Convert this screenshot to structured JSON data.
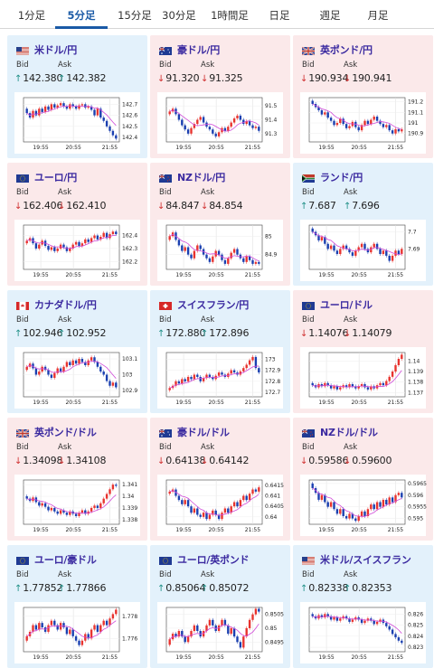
{
  "tabs": [
    {
      "label": "1分足",
      "active": false
    },
    {
      "label": "5分足",
      "active": true
    },
    {
      "label": "15分足",
      "active": false
    },
    {
      "label": "30分足",
      "active": false
    },
    {
      "label": "1時間足",
      "active": false
    },
    {
      "label": "日足",
      "active": false
    },
    {
      "label": "週足",
      "active": false
    },
    {
      "label": "月足",
      "active": false
    }
  ],
  "bid_label": "Bid",
  "ask_label": "Ask",
  "cards": [
    {
      "pair": "米ドル/円",
      "trend": "up",
      "bid": "142.380",
      "ask": "142.382",
      "flag": "us",
      "chart_data": {
        "type": "candlestick",
        "x_ticks": [
          "19:55",
          "20:55",
          "21:55"
        ],
        "y_ticks": [
          "142.7",
          "142.6",
          "142.5",
          "142.4"
        ],
        "ylim": [
          142.36,
          142.76
        ],
        "close": [
          142.62,
          142.58,
          142.64,
          142.6,
          142.66,
          142.63,
          142.68,
          142.65,
          142.7,
          142.67,
          142.69,
          142.71,
          142.68,
          142.66,
          142.7,
          142.68,
          142.66,
          142.69,
          142.7,
          142.67,
          142.68,
          142.65,
          142.6,
          142.66,
          142.58,
          142.55,
          142.5,
          142.46,
          142.42,
          142.39
        ]
      }
    },
    {
      "pair": "豪ドル/円",
      "trend": "down",
      "bid": "91.320",
      "ask": "91.325",
      "flag": "au",
      "chart_data": {
        "type": "candlestick",
        "x_ticks": [
          "19:55",
          "20:55",
          "21:55"
        ],
        "y_ticks": [
          "91.5",
          "91.4",
          "91.3"
        ],
        "ylim": [
          91.24,
          91.56
        ],
        "close": [
          91.46,
          91.48,
          91.44,
          91.4,
          91.36,
          91.33,
          91.3,
          91.34,
          91.37,
          91.4,
          91.42,
          91.38,
          91.35,
          91.33,
          91.3,
          91.28,
          91.31,
          91.34,
          91.32,
          91.35,
          91.38,
          91.41,
          91.43,
          91.4,
          91.37,
          91.39,
          91.36,
          91.34,
          91.35,
          91.32
        ]
      }
    },
    {
      "pair": "英ポンド/円",
      "trend": "down",
      "bid": "190.934",
      "ask": "190.941",
      "flag": "gb",
      "chart_data": {
        "type": "candlestick",
        "x_ticks": [
          "19:55",
          "20:55",
          "21:55"
        ],
        "y_ticks": [
          "191.2",
          "191.1",
          "191",
          "190.9"
        ],
        "ylim": [
          190.82,
          191.24
        ],
        "close": [
          191.18,
          191.15,
          191.12,
          191.08,
          191.1,
          191.05,
          191.02,
          190.98,
          191.0,
          191.04,
          190.99,
          190.95,
          190.97,
          191.01,
          190.96,
          190.93,
          190.98,
          191.02,
          190.99,
          191.03,
          191.06,
          191.02,
          190.99,
          190.96,
          190.98,
          190.93,
          190.9,
          190.94,
          190.92,
          190.94
        ]
      }
    },
    {
      "pair": "ユーロ/円",
      "trend": "down",
      "bid": "162.406",
      "ask": "162.410",
      "flag": "eu",
      "chart_data": {
        "type": "candlestick",
        "x_ticks": [
          "19:55",
          "20:55",
          "21:55"
        ],
        "y_ticks": [
          "162.4",
          "162.3",
          "162.2"
        ],
        "ylim": [
          162.14,
          162.48
        ],
        "close": [
          162.36,
          162.38,
          162.34,
          162.3,
          162.33,
          162.36,
          162.32,
          162.29,
          162.31,
          162.28,
          162.3,
          162.33,
          162.31,
          162.28,
          162.3,
          162.33,
          162.35,
          162.32,
          162.34,
          162.37,
          162.35,
          162.38,
          162.4,
          162.37,
          162.39,
          162.42,
          162.38,
          162.41,
          162.43,
          162.41
        ]
      }
    },
    {
      "pair": "NZドル/円",
      "trend": "down",
      "bid": "84.847",
      "ask": "84.854",
      "flag": "nz",
      "chart_data": {
        "type": "candlestick",
        "x_ticks": [
          "19:55",
          "20:55",
          "21:55"
        ],
        "y_ticks": [
          "85",
          "84.9"
        ],
        "ylim": [
          84.82,
          85.06
        ],
        "close": [
          85.0,
          85.02,
          84.98,
          84.95,
          84.92,
          84.94,
          84.9,
          84.88,
          84.92,
          84.95,
          84.93,
          84.9,
          84.88,
          84.86,
          84.89,
          84.92,
          84.9,
          84.87,
          84.85,
          84.88,
          84.91,
          84.93,
          84.9,
          84.88,
          84.86,
          84.89,
          84.87,
          84.85,
          84.86,
          84.85
        ]
      }
    },
    {
      "pair": "ランド/円",
      "trend": "up",
      "bid": "7.687",
      "ask": "7.696",
      "flag": "za",
      "chart_data": {
        "type": "candlestick",
        "x_ticks": [
          "19:55",
          "20:55",
          "21:55"
        ],
        "y_ticks": [
          "7.7",
          "7.69"
        ],
        "ylim": [
          7.678,
          7.704
        ],
        "close": [
          7.7,
          7.698,
          7.695,
          7.697,
          7.693,
          7.69,
          7.692,
          7.689,
          7.687,
          7.69,
          7.692,
          7.69,
          7.688,
          7.686,
          7.689,
          7.691,
          7.693,
          7.69,
          7.688,
          7.691,
          7.693,
          7.69,
          7.687,
          7.689,
          7.686,
          7.683,
          7.686,
          7.689,
          7.687,
          7.69
        ]
      }
    },
    {
      "pair": "カナダドル/円",
      "trend": "up",
      "bid": "102.946",
      "ask": "102.952",
      "flag": "ca",
      "chart_data": {
        "type": "candlestick",
        "x_ticks": [
          "19:55",
          "20:55",
          "21:55"
        ],
        "y_ticks": [
          "103.1",
          "103",
          "102.9"
        ],
        "ylim": [
          102.86,
          103.14
        ],
        "close": [
          103.05,
          103.07,
          103.04,
          103.0,
          103.02,
          103.05,
          103.03,
          103.0,
          102.98,
          103.01,
          103.04,
          103.02,
          103.05,
          103.08,
          103.06,
          103.09,
          103.07,
          103.1,
          103.08,
          103.06,
          103.09,
          103.11,
          103.08,
          103.05,
          103.02,
          103.0,
          102.96,
          102.93,
          102.95,
          102.92
        ]
      }
    },
    {
      "pair": "スイスフラン/円",
      "trend": "up",
      "bid": "172.880",
      "ask": "172.896",
      "flag": "ch",
      "chart_data": {
        "type": "candlestick",
        "x_ticks": [
          "19:55",
          "20:55",
          "21:55"
        ],
        "y_ticks": [
          "173",
          "172.9",
          "172.8",
          "172.7"
        ],
        "ylim": [
          172.66,
          173.06
        ],
        "close": [
          172.74,
          172.76,
          172.8,
          172.78,
          172.82,
          172.8,
          172.84,
          172.82,
          172.86,
          172.84,
          172.8,
          172.83,
          172.86,
          172.84,
          172.82,
          172.85,
          172.88,
          172.86,
          172.84,
          172.87,
          172.9,
          172.88,
          172.86,
          172.89,
          172.92,
          172.95,
          172.99,
          173.02,
          172.92,
          172.88
        ]
      }
    },
    {
      "pair": "ユーロ/ドル",
      "trend": "down",
      "bid": "1.14076",
      "ask": "1.14079",
      "flag": "eu",
      "chart_data": {
        "type": "candlestick",
        "x_ticks": [
          "19:55",
          "20:55",
          "21:55"
        ],
        "y_ticks": [
          "1.14",
          "1.139",
          "1.138",
          "1.137"
        ],
        "ylim": [
          1.1366,
          1.1408
        ],
        "close": [
          1.1377,
          1.1375,
          1.1378,
          1.1376,
          1.1379,
          1.1377,
          1.1374,
          1.1376,
          1.1373,
          1.1375,
          1.1377,
          1.1375,
          1.1378,
          1.1376,
          1.1374,
          1.1376,
          1.1378,
          1.1375,
          1.1373,
          1.1376,
          1.1374,
          1.1377,
          1.1379,
          1.1377,
          1.1381,
          1.1385,
          1.139,
          1.1396,
          1.1402,
          1.1406
        ]
      }
    },
    {
      "pair": "英ポンド/ドル",
      "trend": "down",
      "bid": "1.34098",
      "ask": "1.34108",
      "flag": "gb",
      "chart_data": {
        "type": "candlestick",
        "x_ticks": [
          "19:55",
          "20:55",
          "21:55"
        ],
        "y_ticks": [
          "1.341",
          "1.34",
          "1.339",
          "1.338"
        ],
        "ylim": [
          1.3376,
          1.3414
        ],
        "close": [
          1.3398,
          1.3396,
          1.3399,
          1.3395,
          1.3392,
          1.3394,
          1.3391,
          1.3388,
          1.339,
          1.3387,
          1.3385,
          1.3388,
          1.3386,
          1.3384,
          1.3387,
          1.3385,
          1.3383,
          1.3386,
          1.3388,
          1.3385,
          1.3387,
          1.339,
          1.3392,
          1.339,
          1.3394,
          1.3398,
          1.3402,
          1.3406,
          1.341,
          1.3409
        ]
      }
    },
    {
      "pair": "豪ドル/ドル",
      "trend": "down",
      "bid": "0.64138",
      "ask": "0.64142",
      "flag": "au",
      "chart_data": {
        "type": "candlestick",
        "x_ticks": [
          "19:55",
          "20:55",
          "21:55"
        ],
        "y_ticks": [
          "0.6415",
          "0.641",
          "0.6405",
          "0.64"
        ],
        "ylim": [
          0.63965,
          0.64175
        ],
        "close": [
          0.6412,
          0.6413,
          0.641,
          0.6408,
          0.6406,
          0.6408,
          0.6405,
          0.6402,
          0.6404,
          0.6401,
          0.64,
          0.6402,
          0.6399,
          0.6401,
          0.6403,
          0.6401,
          0.6399,
          0.6402,
          0.6404,
          0.6402,
          0.6405,
          0.6407,
          0.6405,
          0.6408,
          0.641,
          0.6408,
          0.6411,
          0.6413,
          0.6412,
          0.6414
        ]
      }
    },
    {
      "pair": "NZドル/ドル",
      "trend": "down",
      "bid": "0.59586",
      "ask": "0.59600",
      "flag": "nz",
      "chart_data": {
        "type": "candlestick",
        "x_ticks": [
          "19:55",
          "20:55",
          "21:55"
        ],
        "y_ticks": [
          "0.5965",
          "0.596",
          "0.5955",
          "0.595"
        ],
        "ylim": [
          0.59475,
          0.59665
        ],
        "close": [
          0.5963,
          0.5961,
          0.5958,
          0.596,
          0.5957,
          0.5955,
          0.5957,
          0.5954,
          0.5952,
          0.5954,
          0.5951,
          0.595,
          0.5952,
          0.595,
          0.5949,
          0.5951,
          0.5953,
          0.5951,
          0.5954,
          0.5956,
          0.5954,
          0.5957,
          0.5955,
          0.5958,
          0.5956,
          0.5959,
          0.5957,
          0.596,
          0.5961,
          0.5959
        ]
      }
    },
    {
      "pair": "ユーロ/豪ドル",
      "trend": "up",
      "bid": "1.77852",
      "ask": "1.77866",
      "flag": "eu",
      "chart_data": {
        "type": "candlestick",
        "x_ticks": [
          "19:55",
          "20:55",
          "21:55"
        ],
        "y_ticks": [
          "1.778",
          "1.776"
        ],
        "ylim": [
          1.7748,
          1.7788
        ],
        "close": [
          1.7762,
          1.7766,
          1.7772,
          1.7768,
          1.7774,
          1.777,
          1.7766,
          1.7772,
          1.7776,
          1.7772,
          1.7768,
          1.7774,
          1.777,
          1.7764,
          1.7768,
          1.7762,
          1.7758,
          1.7754,
          1.7758,
          1.7764,
          1.776,
          1.7768,
          1.7772,
          1.7766,
          1.7772,
          1.7776,
          1.7772,
          1.7778,
          1.7782,
          1.7786
        ]
      }
    },
    {
      "pair": "ユーロ/英ポンド",
      "trend": "up",
      "bid": "0.85064",
      "ask": "0.85072",
      "flag": "eu",
      "chart_data": {
        "type": "candlestick",
        "x_ticks": [
          "19:55",
          "20:55",
          "21:55"
        ],
        "y_ticks": [
          "0.8505",
          "0.85",
          "0.8495"
        ],
        "ylim": [
          0.84915,
          0.85075
        ],
        "close": [
          0.8496,
          0.8498,
          0.8497,
          0.8499,
          0.8497,
          0.8495,
          0.8497,
          0.8499,
          0.8501,
          0.8499,
          0.8497,
          0.8499,
          0.8501,
          0.8503,
          0.8501,
          0.8499,
          0.8501,
          0.8503,
          0.8501,
          0.8498,
          0.85,
          0.8497,
          0.8495,
          0.8493,
          0.8497,
          0.85,
          0.8503,
          0.8505,
          0.8507,
          0.8506
        ]
      }
    },
    {
      "pair": "米ドル/スイスフラン",
      "trend": "up",
      "bid": "0.82338",
      "ask": "0.82353",
      "flag": "us",
      "chart_data": {
        "type": "candlestick",
        "x_ticks": [
          "19:55",
          "20:55",
          "21:55"
        ],
        "y_ticks": [
          "0.826",
          "0.825",
          "0.824",
          "0.823"
        ],
        "ylim": [
          0.8226,
          0.8266
        ],
        "close": [
          0.8258,
          0.8256,
          0.8259,
          0.8257,
          0.826,
          0.8258,
          0.8255,
          0.8257,
          0.8254,
          0.8256,
          0.8258,
          0.8256,
          0.8253,
          0.8255,
          0.8257,
          0.8255,
          0.8252,
          0.8254,
          0.8256,
          0.8254,
          0.8251,
          0.8253,
          0.8255,
          0.8252,
          0.8249,
          0.8246,
          0.8242,
          0.8239,
          0.8236,
          0.8234
        ]
      }
    }
  ]
}
